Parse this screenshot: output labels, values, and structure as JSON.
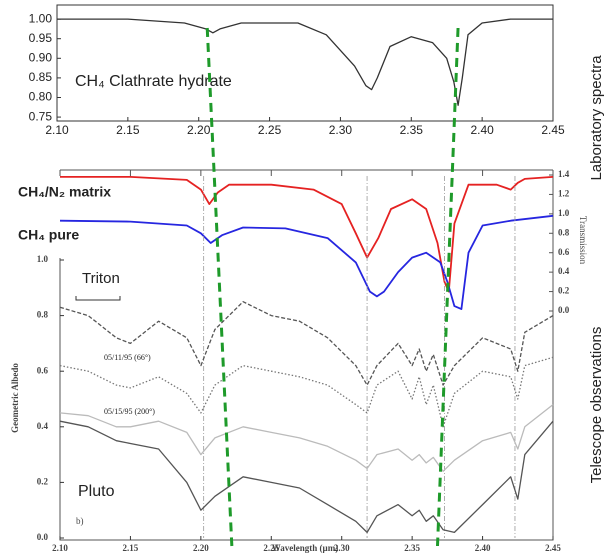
{
  "chart_data": [
    {
      "type": "line",
      "xlim": [
        2.1,
        2.45
      ],
      "ylim": [
        0.74,
        1.036
      ],
      "xticks": [
        {
          "value": 2.1,
          "label": "2.10"
        },
        2.15,
        {
          "value": 2.2,
          "label": "2.20"
        },
        2.25,
        {
          "value": 2.3,
          "label": "2.30"
        },
        2.35,
        {
          "value": 2.4,
          "label": "2.40"
        },
        2.45
      ],
      "yticks": [
        {
          "value": 1.0,
          "label": "1.00"
        },
        0.95,
        {
          "value": 0.9,
          "label": "0.90"
        },
        0.85,
        {
          "value": 0.8,
          "label": "0.80"
        },
        0.75
      ],
      "series": [
        {
          "name": "CH₄ Clathrate hydrate",
          "color": "#333333",
          "x": [
            2.1,
            2.15,
            2.19,
            2.205,
            2.21,
            2.215,
            2.23,
            2.27,
            2.29,
            2.31,
            2.318,
            2.322,
            2.326,
            2.335,
            2.35,
            2.365,
            2.375,
            2.38,
            2.383,
            2.386,
            2.39,
            2.4,
            2.42,
            2.45
          ],
          "values": [
            1.0,
            1.0,
            0.99,
            0.975,
            0.965,
            0.975,
            0.99,
            0.99,
            0.96,
            0.88,
            0.83,
            0.82,
            0.85,
            0.93,
            0.955,
            0.94,
            0.9,
            0.84,
            0.78,
            0.85,
            0.96,
            0.99,
            1.0,
            1.0
          ]
        }
      ],
      "markers": [
        {
          "top": 2.206,
          "bottom": 2.222
        },
        {
          "top": 2.383,
          "bottom": 2.368
        }
      ],
      "marker_color": "#1e9a2a",
      "side_label": "Laboratory spectra"
    },
    {
      "type": "line",
      "xlim": [
        2.1,
        2.45
      ],
      "y2lim": [
        0,
        1.4
      ],
      "xticks": [
        2.1,
        2.15,
        2.2,
        2.25,
        2.3,
        2.35,
        2.4,
        2.45
      ],
      "y2ticks": [
        1.4,
        1.2,
        {
          "value": 1.0,
          "label": "1.0"
        },
        0.8,
        0.6,
        0.4,
        0.2,
        {
          "value": 0,
          "label": "0.0"
        }
      ],
      "y2label": "Transmission",
      "series": [
        {
          "name": "CH₄/N₂ matrix",
          "color": "#e52222",
          "axis": "y2",
          "x": [
            2.1,
            2.15,
            2.19,
            2.2,
            2.206,
            2.212,
            2.22,
            2.25,
            2.28,
            2.3,
            2.31,
            2.318,
            2.326,
            2.335,
            2.35,
            2.36,
            2.368,
            2.373,
            2.376,
            2.38,
            2.39,
            2.41,
            2.42,
            2.425,
            2.43,
            2.45
          ],
          "values": [
            1.38,
            1.38,
            1.35,
            1.25,
            1.1,
            1.22,
            1.3,
            1.3,
            1.25,
            1.1,
            0.8,
            0.55,
            0.75,
            1.05,
            1.15,
            1.05,
            0.7,
            0.3,
            0.2,
            0.9,
            1.3,
            1.3,
            1.25,
            1.32,
            1.36,
            1.38
          ]
        },
        {
          "name": "CH₄ pure",
          "color": "#2626e0",
          "axis": "y2",
          "x": [
            2.1,
            2.15,
            2.19,
            2.2,
            2.207,
            2.215,
            2.23,
            2.26,
            2.29,
            2.31,
            2.32,
            2.325,
            2.33,
            2.34,
            2.35,
            2.36,
            2.37,
            2.375,
            2.38,
            2.385,
            2.39,
            2.4,
            2.42,
            2.45
          ],
          "values": [
            0.93,
            0.92,
            0.88,
            0.8,
            0.7,
            0.78,
            0.86,
            0.85,
            0.75,
            0.5,
            0.2,
            0.15,
            0.2,
            0.4,
            0.55,
            0.6,
            0.5,
            0.3,
            0.05,
            0.02,
            0.6,
            0.88,
            0.93,
            0.98
          ]
        }
      ]
    },
    {
      "type": "line",
      "xlim": [
        2.1,
        2.45
      ],
      "ylim": [
        0,
        1.0
      ],
      "xticks": [
        {
          "value": 2.1,
          "label": "2.10"
        },
        2.15,
        {
          "value": 2.2,
          "label": "2.20"
        },
        2.25,
        {
          "value": 2.3,
          "label": "2.30"
        },
        2.35,
        {
          "value": 2.4,
          "label": "2.40"
        },
        2.45
      ],
      "yticks": [
        {
          "value": 1.0,
          "label": "1.0"
        },
        0.8,
        0.6,
        0.4,
        0.2,
        {
          "value": 0,
          "label": "0.0"
        }
      ],
      "xlabel": "Wavelength (µm)",
      "ylabel": "Geometric Albedo",
      "panel_label": "b)",
      "reference_lines": [
        2.202,
        2.318,
        2.373,
        2.423
      ],
      "x": [
        2.1,
        2.12,
        2.14,
        2.15,
        2.17,
        2.19,
        2.2,
        2.21,
        2.23,
        2.25,
        2.27,
        2.29,
        2.31,
        2.318,
        2.325,
        2.34,
        2.35,
        2.355,
        2.36,
        2.365,
        2.372,
        2.38,
        2.4,
        2.42,
        2.425,
        2.43,
        2.45
      ],
      "series": [
        {
          "name": "Triton",
          "color": "#555555",
          "style": "dashed",
          "values": [
            0.83,
            0.8,
            0.72,
            0.7,
            0.78,
            0.72,
            0.62,
            0.75,
            0.85,
            0.8,
            0.78,
            0.72,
            0.62,
            0.55,
            0.62,
            0.7,
            0.62,
            0.68,
            0.6,
            0.66,
            0.55,
            0.62,
            0.72,
            0.68,
            0.6,
            0.74,
            0.8
          ]
        },
        {
          "name": "05/11/95 (66°)",
          "color": "#777777",
          "style": "dotted",
          "values": [
            0.62,
            0.6,
            0.55,
            0.54,
            0.58,
            0.52,
            0.45,
            0.55,
            0.62,
            0.6,
            0.58,
            0.55,
            0.48,
            0.45,
            0.55,
            0.6,
            0.5,
            0.58,
            0.48,
            0.55,
            0.4,
            0.52,
            0.6,
            0.58,
            0.5,
            0.62,
            0.65
          ]
        },
        {
          "name": "05/15/95 (200°)",
          "color": "#bbbbbb",
          "style": "solid",
          "values": [
            0.45,
            0.44,
            0.4,
            0.4,
            0.42,
            0.38,
            0.3,
            0.36,
            0.4,
            0.38,
            0.36,
            0.33,
            0.28,
            0.25,
            0.3,
            0.32,
            0.28,
            0.3,
            0.27,
            0.29,
            0.24,
            0.28,
            0.35,
            0.38,
            0.32,
            0.4,
            0.48
          ]
        },
        {
          "name": "Pluto",
          "color": "#555555",
          "style": "solid",
          "values": [
            0.42,
            0.4,
            0.35,
            0.34,
            0.32,
            0.2,
            0.1,
            0.15,
            0.22,
            0.2,
            0.18,
            0.12,
            0.06,
            0.02,
            0.08,
            0.12,
            0.08,
            0.1,
            0.06,
            0.08,
            0.03,
            0.02,
            0.12,
            0.22,
            0.14,
            0.3,
            0.42
          ]
        }
      ],
      "side_label": "Telescope observations"
    }
  ]
}
